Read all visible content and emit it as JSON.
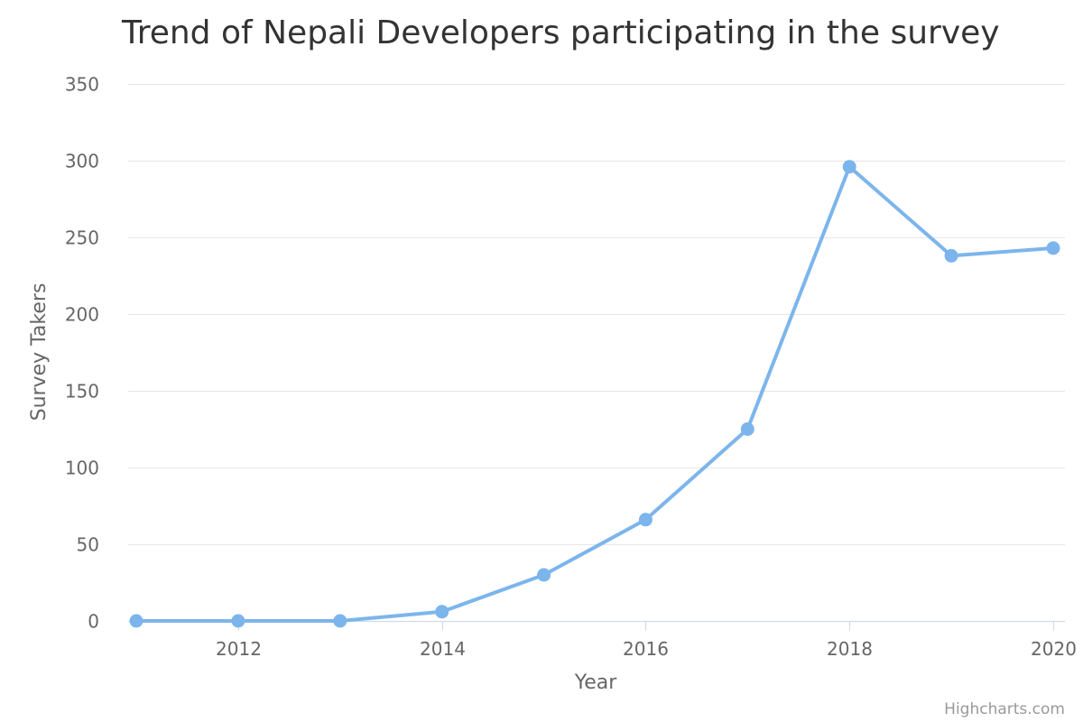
{
  "chart_data": {
    "type": "line",
    "title": "Trend of Nepali Developers participating in the survey",
    "xlabel": "Year",
    "ylabel": "Survey Takers",
    "x": [
      2011,
      2012,
      2013,
      2014,
      2015,
      2016,
      2017,
      2018,
      2019,
      2020
    ],
    "series": [
      {
        "values": [
          0,
          0,
          0,
          6,
          30,
          66,
          125,
          296,
          238,
          243
        ]
      }
    ],
    "xlim": [
      2011,
      2020
    ],
    "ylim": [
      0,
      350
    ],
    "x_ticks": [
      2012,
      2014,
      2016,
      2018,
      2020
    ],
    "y_ticks": [
      0,
      50,
      100,
      150,
      200,
      250,
      300,
      350
    ],
    "grid": "horizontal",
    "legend": "none",
    "colors": {
      "series": "#7cb5ec",
      "grid": "#e6e6e6",
      "axis_line": "#ccd6eb",
      "title": "#333333",
      "labels": "#666666",
      "credits": "#999999"
    }
  },
  "credits": "Highcharts.com"
}
